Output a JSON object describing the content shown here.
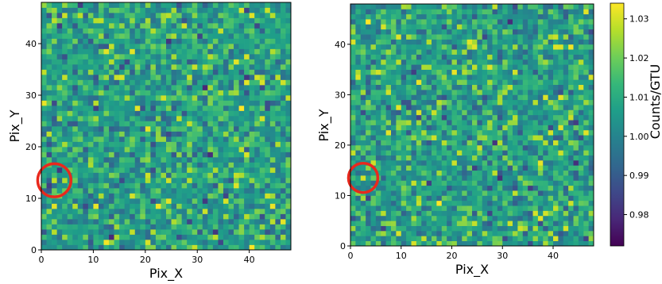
{
  "chart_data": [
    {
      "type": "heatmap",
      "xlabel": "Pix_X",
      "ylabel": "Pix_Y",
      "grid_size": [
        48,
        48
      ],
      "xlim": [
        0,
        48
      ],
      "ylim": [
        0,
        48
      ],
      "xticks": [
        0,
        10,
        20,
        30,
        40
      ],
      "yticks": [
        0,
        10,
        20,
        30,
        40
      ],
      "colormap": "viridis",
      "value_range": [
        0.972,
        1.034
      ],
      "noise_seed": 11,
      "highlight": {
        "x": 2.5,
        "y": 13.5,
        "radius": 3.2,
        "color": "#e8291d",
        "value": 1.028
      }
    },
    {
      "type": "heatmap",
      "xlabel": "Pix_X",
      "ylabel": "Pix_Y",
      "grid_size": [
        48,
        48
      ],
      "xlim": [
        0,
        48
      ],
      "ylim": [
        0,
        48
      ],
      "xticks": [
        0,
        10,
        20,
        30,
        40
      ],
      "yticks": [
        0,
        10,
        20,
        30,
        40
      ],
      "colormap": "viridis",
      "value_range": [
        0.972,
        1.034
      ],
      "noise_seed": 29,
      "highlight": {
        "x": 2.5,
        "y": 13.5,
        "radius": 2.9,
        "color": "#e8291d",
        "value": 1.03
      }
    }
  ],
  "colorbar": {
    "label": "Counts/GTU",
    "range": [
      0.972,
      1.034
    ],
    "ticks": [
      "0.98",
      "0.99",
      "1.00",
      "1.01",
      "1.02",
      "1.03"
    ]
  }
}
